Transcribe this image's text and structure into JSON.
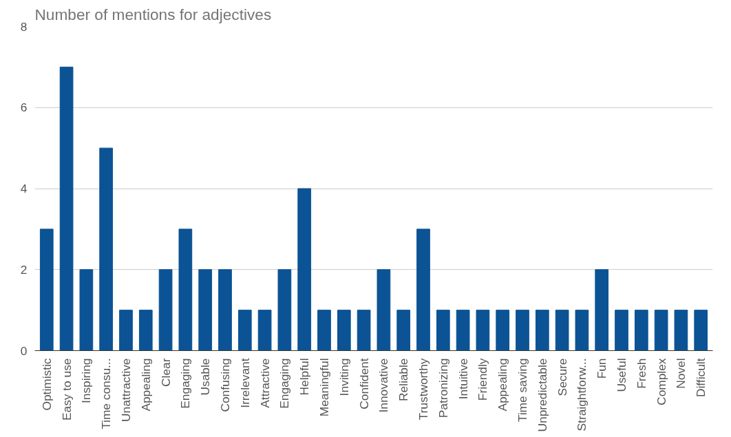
{
  "chart_data": {
    "type": "bar",
    "title": "Number of mentions for adjectives",
    "categories": [
      "Optimistic",
      "Easy to use",
      "Inspiring",
      "Time consu...",
      "Unattractive",
      "Appealing",
      "Clear",
      "Engaging",
      "Usable",
      "Confusing",
      "Irrelevant",
      "Attractive",
      "Engaging",
      "Helpful",
      "Meaningful",
      "Inviting",
      "Confident",
      "Innovative",
      "Reliable",
      "Trustworthy",
      "Patronizing",
      "Intuitive",
      "Friendly",
      "Appealing",
      "Time saving",
      "Unpredictable",
      "Secure",
      "Straightforw...",
      "Fun",
      "Useful",
      "Fresh",
      "Complex",
      "Novel",
      "Difficult"
    ],
    "values": [
      3,
      7,
      2,
      5,
      1,
      1,
      2,
      3,
      2,
      2,
      1,
      1,
      2,
      4,
      1,
      1,
      1,
      2,
      1,
      3,
      1,
      1,
      1,
      1,
      1,
      1,
      1,
      1,
      2,
      1,
      1,
      1,
      1,
      1
    ],
    "color": "#0b5394",
    "ylim": [
      0,
      8
    ],
    "yticks": [
      0,
      2,
      4,
      6,
      8
    ],
    "grid": "y"
  }
}
